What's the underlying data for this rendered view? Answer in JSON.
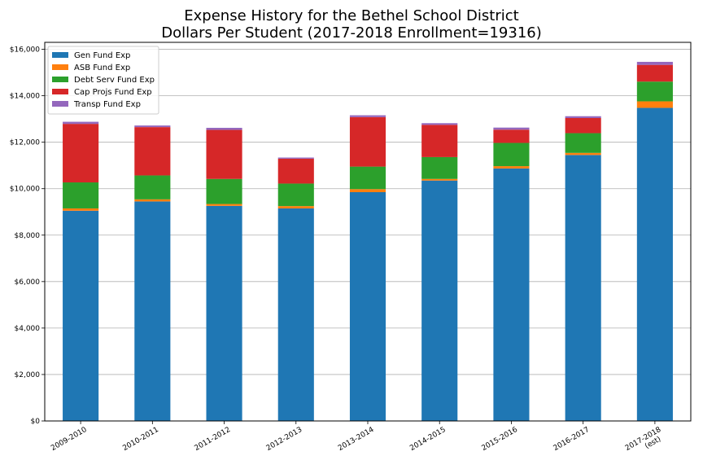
{
  "chart_data": {
    "type": "bar",
    "stacked": true,
    "title_lines": [
      "Expense History for the Bethel School District",
      "Dollars Per Student (2017-2018 Enrollment=19316)"
    ],
    "xlabel": "",
    "ylabel": "",
    "ylim": [
      0,
      16300
    ],
    "yticks": [
      0,
      2000,
      4000,
      6000,
      8000,
      10000,
      12000,
      14000,
      16000
    ],
    "ytick_labels": [
      "$0",
      "$2,000",
      "$4,000",
      "$6,000",
      "$8,000",
      "$10,000",
      "$12,000",
      "$14,000",
      "$16,000"
    ],
    "grid": "horizontal",
    "legend_position": "top-left",
    "categories": [
      [
        "2009-2010"
      ],
      [
        "2010-2011"
      ],
      [
        "2011-2012"
      ],
      [
        "2012-2013"
      ],
      [
        "2013-2014"
      ],
      [
        "2014-2015"
      ],
      [
        "2015-2016"
      ],
      [
        "2016-2017"
      ],
      [
        "2017-2018",
        "(est)"
      ]
    ],
    "series": [
      {
        "name": "Gen Fund Exp",
        "color": "#1f77b4",
        "values": [
          9050,
          9450,
          9260,
          9150,
          9850,
          10350,
          10870,
          11450,
          13480
        ]
      },
      {
        "name": "ASB Fund Exp",
        "color": "#ff7f0e",
        "values": [
          100,
          90,
          80,
          100,
          130,
          70,
          100,
          90,
          280
        ]
      },
      {
        "name": "Debt Serv Fund Exp",
        "color": "#2ca02c",
        "values": [
          1120,
          1030,
          1080,
          970,
          970,
          940,
          1000,
          850,
          850
        ]
      },
      {
        "name": "Cap Projs Fund Exp",
        "color": "#d62728",
        "values": [
          2520,
          2080,
          2110,
          1070,
          2130,
          1390,
          570,
          650,
          720
        ]
      },
      {
        "name": "Transp Fund Exp",
        "color": "#9467bd",
        "values": [
          90,
          70,
          90,
          50,
          80,
          70,
          90,
          80,
          130
        ]
      }
    ]
  }
}
